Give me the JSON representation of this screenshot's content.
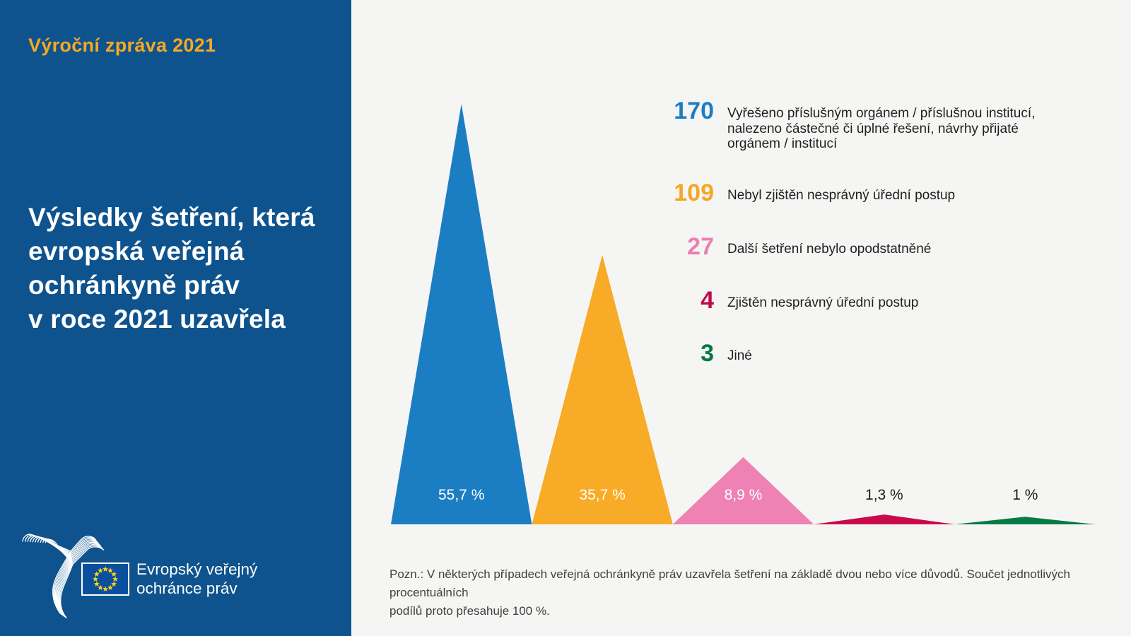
{
  "sidebar": {
    "report_label": "Výroční zpráva 2021",
    "title_lines": [
      "Výsledky šetření, která",
      "evropská veřejná",
      "ochránkyně práv",
      "v roce 2021 uzavřela"
    ],
    "logo_text_lines": [
      "Evropský veřejný",
      "ochránce práv"
    ],
    "bg_color": "#0e538e",
    "accent_color": "#f7a823"
  },
  "chart_data": {
    "type": "bar",
    "variant": "triangle-peaks",
    "categories": [
      "Vyřešeno příslušným orgánem / příslušnou institucí, nalezeno částečné či úplné řešení, návrhy přijaté orgánem / institucí",
      "Nebyl zjištěn nesprávný úřední postup",
      "Další šetření nebylo opodstatněné",
      "Zjištěn nesprávný úřední postup",
      "Jiné"
    ],
    "counts": [
      170,
      109,
      27,
      4,
      3
    ],
    "percents": [
      55.7,
      35.7,
      8.9,
      1.3,
      1.0
    ],
    "percent_labels": [
      "55,7 %",
      "35,7 %",
      "8,9 %",
      "1,3 %",
      "1 %"
    ],
    "count_labels": [
      "170",
      "109",
      "27",
      "4",
      "3"
    ],
    "colors": [
      "#1b7ec3",
      "#f8ab26",
      "#ee82b4",
      "#c90a4c",
      "#077b44"
    ],
    "label_inside": [
      true,
      true,
      true,
      false,
      false
    ],
    "xlabel": "",
    "ylabel": "",
    "grid": false,
    "legend_position": "right"
  },
  "legend": {
    "items": [
      {
        "count": "170",
        "color": "#1b7ec3",
        "lines": [
          "Vyřešeno příslušným orgánem / příslušnou institucí,",
          "nalezeno částečné či úplné řešení, návrhy přijaté",
          "orgánem / institucí"
        ]
      },
      {
        "count": "109",
        "color": "#f6a623",
        "lines": [
          "Nebyl zjištěn nesprávný úřední postup"
        ]
      },
      {
        "count": "27",
        "color": "#ec7eb2",
        "lines": [
          "Další šetření nebylo opodstatněné"
        ]
      },
      {
        "count": "4",
        "color": "#c10a4b",
        "lines": [
          "Zjištěn nesprávný úřední postup"
        ]
      },
      {
        "count": "3",
        "color": "#007a41",
        "lines": [
          "Jiné"
        ]
      }
    ]
  },
  "footnote": {
    "lines": [
      "Pozn.: V některých případech veřejná ochránkyně práv uzavřela šetření na základě dvou nebo více důvodů. Součet jednotlivých procentuálních",
      "podílů proto přesahuje 100 %."
    ]
  }
}
